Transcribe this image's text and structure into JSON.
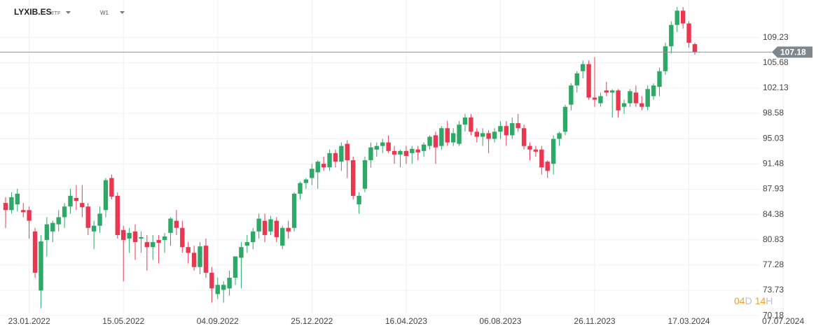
{
  "chart_data": {
    "type": "candlestick",
    "title": "LYXIB.ES",
    "subtitle": "ETF",
    "timeframe": "W1",
    "categories": [
      null,
      null,
      null,
      null,
      "23.01.2022",
      null,
      null,
      null,
      null,
      null,
      null,
      null,
      null,
      null,
      null,
      null,
      null,
      null,
      null,
      null,
      "15.05.2022",
      null,
      null,
      null,
      null,
      null,
      null,
      null,
      null,
      null,
      null,
      null,
      null,
      null,
      null,
      null,
      "04.09.2022",
      null,
      null,
      null,
      null,
      null,
      null,
      null,
      null,
      null,
      null,
      null,
      null,
      null,
      null,
      null,
      "25.12.2022",
      null,
      null,
      null,
      null,
      null,
      null,
      null,
      null,
      null,
      null,
      null,
      null,
      null,
      null,
      null,
      "16.04.2023",
      null,
      null,
      null,
      null,
      null,
      null,
      null,
      null,
      null,
      null,
      null,
      null,
      null,
      null,
      null,
      "06.08.2023",
      null,
      null,
      null,
      null,
      null,
      null,
      null,
      null,
      null,
      null,
      null,
      null,
      null,
      null,
      null,
      "26.11.2023",
      null,
      null,
      null,
      null,
      null,
      null,
      null,
      null,
      null,
      null,
      null,
      null,
      null,
      null,
      null,
      "17.03.2024",
      null,
      null,
      null,
      null,
      null,
      null,
      null,
      null,
      null,
      null,
      null,
      null,
      null,
      null,
      null,
      "07.07.2024"
    ],
    "open": [
      86.0,
      85.0,
      85.8,
      85.0,
      85.0,
      82.0,
      73.7,
      80.8,
      82.0,
      83.0,
      84.0,
      85.5,
      86.7,
      86.0,
      85.5,
      82.0,
      82.8,
      85.0,
      89.5,
      87.0,
      82.2,
      81.0,
      82.0,
      81.0,
      80.5,
      79.8,
      80.8,
      80.8,
      81.8,
      83.5,
      82.5,
      79.8,
      79.0,
      77.0,
      80.0,
      76.2,
      73.2,
      73.8,
      74.0,
      75.5,
      78.3,
      80.0,
      80.5,
      82.0,
      83.5,
      82.0,
      83.5,
      80.0,
      82.5,
      82.5,
      87.3,
      88.8,
      89.5,
      90.3,
      91.5,
      91.0,
      93.0,
      91.8,
      94.3,
      92.0,
      85.8,
      88.0,
      92.0,
      93.5,
      94.0,
      94.5,
      93.3,
      92.8,
      93.3,
      93.0,
      93.5,
      93.3,
      94.0,
      95.5,
      94.0,
      96.5,
      94.5,
      94.3,
      97.0,
      98.0,
      96.0,
      95.3,
      95.8,
      95.0,
      96.0,
      96.8,
      95.5,
      97.2,
      96.5,
      94.0,
      93.5,
      93.5,
      91.8,
      91.5,
      95.0,
      96.0,
      99.8,
      102.5,
      104.5,
      105.5,
      100.8,
      100.0,
      101.8,
      101.5,
      101.8,
      99.5,
      100.0,
      101.5,
      100.0,
      99.5,
      101.0,
      102.3,
      104.5,
      108.0,
      111.0,
      113.0,
      111.2,
      108.3,
      null,
      null,
      null,
      null,
      null,
      null,
      null,
      null,
      null,
      null,
      null,
      null,
      null,
      null,
      null
    ],
    "high": [
      86.8,
      87.5,
      88.0,
      86.0,
      85.5,
      82.5,
      81.5,
      84.0,
      83.5,
      85.0,
      86.0,
      88.0,
      88.5,
      88.5,
      86.0,
      83.5,
      85.5,
      89.5,
      90.0,
      87.5,
      82.8,
      82.5,
      83.0,
      82.0,
      81.5,
      81.5,
      81.5,
      81.8,
      84.0,
      85.0,
      83.5,
      80.5,
      80.0,
      80.5,
      81.0,
      77.0,
      75.5,
      75.0,
      76.5,
      78.5,
      80.5,
      81.5,
      82.5,
      84.5,
      84.5,
      84.2,
      84.0,
      82.8,
      83.5,
      87.5,
      89.0,
      89.5,
      91.5,
      92.0,
      92.5,
      93.5,
      93.5,
      94.5,
      94.8,
      92.5,
      87.5,
      92.5,
      94.5,
      94.5,
      95.0,
      95.5,
      94.0,
      93.5,
      94.0,
      94.0,
      94.0,
      94.5,
      95.5,
      96.0,
      96.8,
      97.5,
      96.5,
      97.5,
      98.5,
      98.5,
      96.5,
      96.5,
      96.2,
      96.5,
      97.5,
      97.5,
      98.0,
      98.5,
      97.0,
      94.5,
      94.0,
      94.0,
      92.0,
      95.5,
      96.0,
      99.8,
      102.8,
      104.5,
      106.0,
      106.0,
      106.5,
      101.5,
      103.0,
      102.0,
      102.0,
      100.5,
      102.0,
      102.5,
      101.0,
      102.5,
      102.8,
      105.0,
      108.5,
      111.5,
      113.5,
      113.5,
      111.5,
      108.5,
      null,
      null,
      null,
      null,
      null,
      null,
      null,
      null,
      null,
      null,
      null,
      null,
      null,
      null,
      null
    ],
    "low": [
      82.5,
      84.5,
      84.8,
      84.0,
      81.0,
      75.5,
      71.2,
      78.5,
      80.5,
      82.0,
      82.5,
      84.5,
      85.0,
      84.0,
      81.5,
      79.5,
      81.8,
      84.0,
      86.5,
      81.0,
      75.0,
      79.0,
      78.0,
      79.0,
      76.5,
      78.0,
      77.5,
      79.0,
      80.0,
      81.5,
      79.0,
      77.5,
      76.5,
      76.0,
      75.5,
      72.0,
      72.5,
      72.0,
      73.0,
      74.5,
      74.0,
      79.0,
      79.5,
      81.0,
      80.5,
      81.5,
      80.5,
      79.5,
      81.0,
      82.0,
      86.5,
      88.0,
      88.5,
      88.0,
      90.5,
      90.5,
      91.0,
      90.5,
      89.5,
      86.5,
      84.5,
      87.5,
      91.0,
      92.5,
      93.0,
      93.0,
      91.5,
      91.0,
      91.5,
      91.5,
      92.0,
      92.5,
      93.5,
      91.5,
      93.5,
      94.0,
      94.0,
      94.0,
      96.0,
      95.5,
      94.5,
      94.0,
      93.0,
      94.5,
      95.0,
      94.0,
      95.0,
      96.0,
      93.5,
      92.0,
      92.5,
      90.0,
      89.5,
      90.0,
      94.0,
      95.5,
      99.0,
      101.5,
      103.5,
      100.5,
      99.5,
      99.5,
      101.0,
      98.0,
      98.0,
      98.5,
      99.5,
      99.5,
      99.0,
      99.0,
      100.5,
      101.0,
      104.0,
      107.0,
      110.0,
      110.5,
      107.8,
      106.8,
      null,
      null,
      null,
      null,
      null,
      null,
      null,
      null,
      null,
      null,
      null,
      null,
      null,
      null,
      null
    ],
    "close": [
      85.0,
      86.8,
      87.3,
      84.7,
      83.5,
      76.2,
      80.6,
      83.0,
      83.2,
      84.0,
      85.5,
      87.0,
      86.3,
      85.4,
      82.5,
      82.8,
      84.5,
      89.2,
      86.9,
      81.5,
      80.8,
      81.8,
      80.5,
      81.2,
      79.8,
      80.5,
      80.4,
      81.3,
      83.8,
      82.5,
      79.8,
      79.0,
      77.0,
      79.9,
      76.2,
      74.0,
      74.5,
      74.5,
      75.5,
      78.5,
      79.8,
      80.5,
      82.0,
      83.8,
      81.5,
      83.7,
      81.2,
      82.5,
      82.0,
      87.3,
      88.8,
      89.3,
      90.8,
      91.8,
      91.0,
      93.0,
      91.8,
      94.0,
      92.0,
      87.0,
      87.0,
      92.0,
      93.8,
      94.0,
      94.5,
      93.3,
      92.8,
      93.3,
      92.6,
      93.6,
      93.1,
      94.2,
      95.3,
      93.8,
      96.5,
      94.5,
      95.8,
      97.0,
      98.0,
      96.0,
      95.3,
      95.8,
      95.0,
      96.0,
      96.8,
      95.5,
      97.2,
      96.5,
      94.0,
      93.5,
      93.2,
      91.0,
      90.5,
      95.0,
      95.8,
      99.5,
      102.5,
      104.2,
      105.5,
      100.8,
      100.5,
      101.0,
      101.5,
      101.8,
      99.0,
      100.0,
      101.7,
      100.0,
      99.5,
      102.0,
      102.5,
      104.5,
      108.0,
      111.0,
      113.0,
      111.2,
      108.5,
      107.2,
      null,
      null,
      null,
      null,
      null,
      null,
      null,
      null,
      null,
      null,
      null,
      null,
      null,
      null,
      null
    ],
    "up_color": "#2ea866",
    "down_color": "#e9374f",
    "ylim": [
      70.0,
      114.5
    ],
    "yticks": [
      70.18,
      73.73,
      77.28,
      80.83,
      84.38,
      87.93,
      91.48,
      95.03,
      98.58,
      102.13,
      105.68,
      109.23
    ],
    "grid": true,
    "last_price": 107.18
  },
  "countdown": {
    "days": "04",
    "day_unit": "D",
    "hours": "14",
    "hour_unit": "H"
  }
}
